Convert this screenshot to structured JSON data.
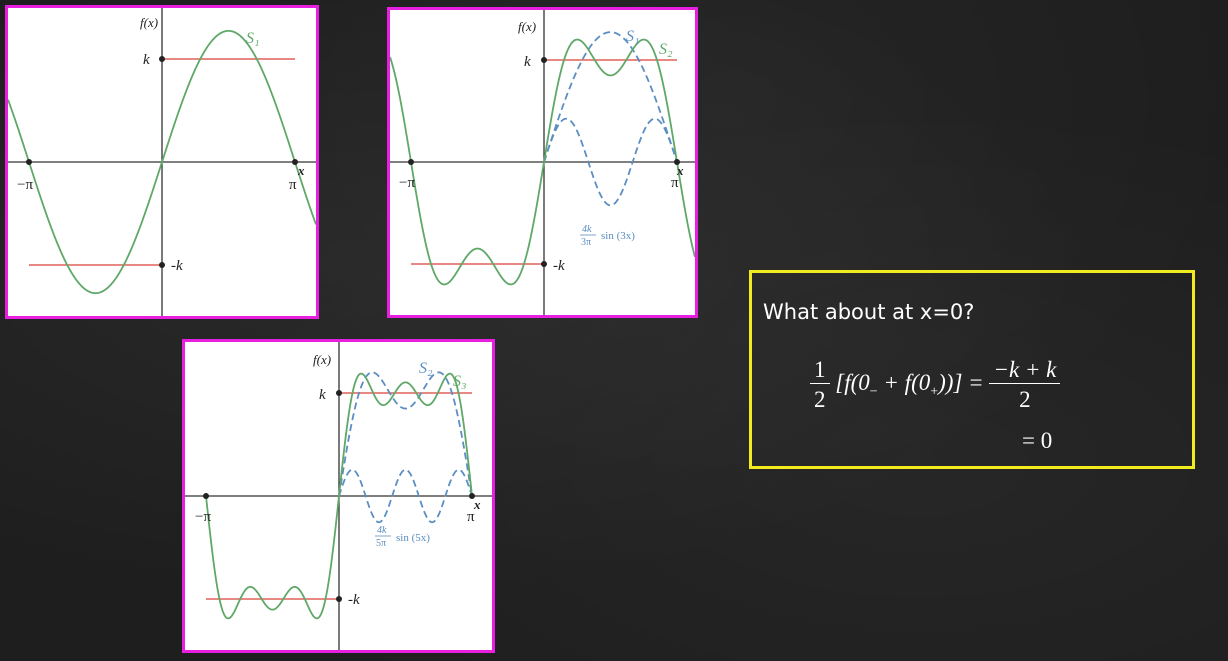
{
  "plots": [
    {
      "id": "s1",
      "fx_label": "f(x)",
      "k_label": "k",
      "neg_k_label": "-k",
      "neg_pi_label": "−π",
      "pi_label": "π",
      "x_label": "x",
      "curves": [
        {
          "name": "S₁",
          "style": "solid",
          "color": "#5fa868"
        }
      ],
      "annotation": null
    },
    {
      "id": "s2",
      "fx_label": "f(x)",
      "k_label": "k",
      "neg_k_label": "-k",
      "neg_pi_label": "−π",
      "pi_label": "π",
      "x_label": "x",
      "curves": [
        {
          "name": "S₁",
          "style": "dashed",
          "color": "#5b8ec2"
        },
        {
          "name": "S₂",
          "style": "solid",
          "color": "#5fa868"
        }
      ],
      "annotation": {
        "coef_num": "4k",
        "coef_den": "3π",
        "func": "sin (3x)"
      }
    },
    {
      "id": "s3",
      "fx_label": "f(x)",
      "k_label": "k",
      "neg_k_label": "-k",
      "neg_pi_label": "−π",
      "pi_label": "π",
      "x_label": "x",
      "curves": [
        {
          "name": "S₂",
          "style": "dashed",
          "color": "#5b8ec2"
        },
        {
          "name": "S₃",
          "style": "solid",
          "color": "#5fa868"
        }
      ],
      "annotation": {
        "coef_num": "4k",
        "coef_den": "5π",
        "func": "sin (5x)"
      }
    }
  ],
  "colors": {
    "step": "#e0605a",
    "solid": "#5fa868",
    "dashed": "#5b8ec2",
    "axis": "#333333",
    "panel_border": "#e81ee0",
    "box_border": "#f2ec1f"
  },
  "question": "What about at x=0?",
  "equation": {
    "half_num": "1",
    "half_den": "2",
    "bracket_expr": "[f(0",
    "sub_minus": "−",
    "plus_f": " + f(0",
    "sub_plus": "+",
    "close": "))] =",
    "rhs_num": "−k + k",
    "rhs_den": "2",
    "result": "= 0"
  }
}
